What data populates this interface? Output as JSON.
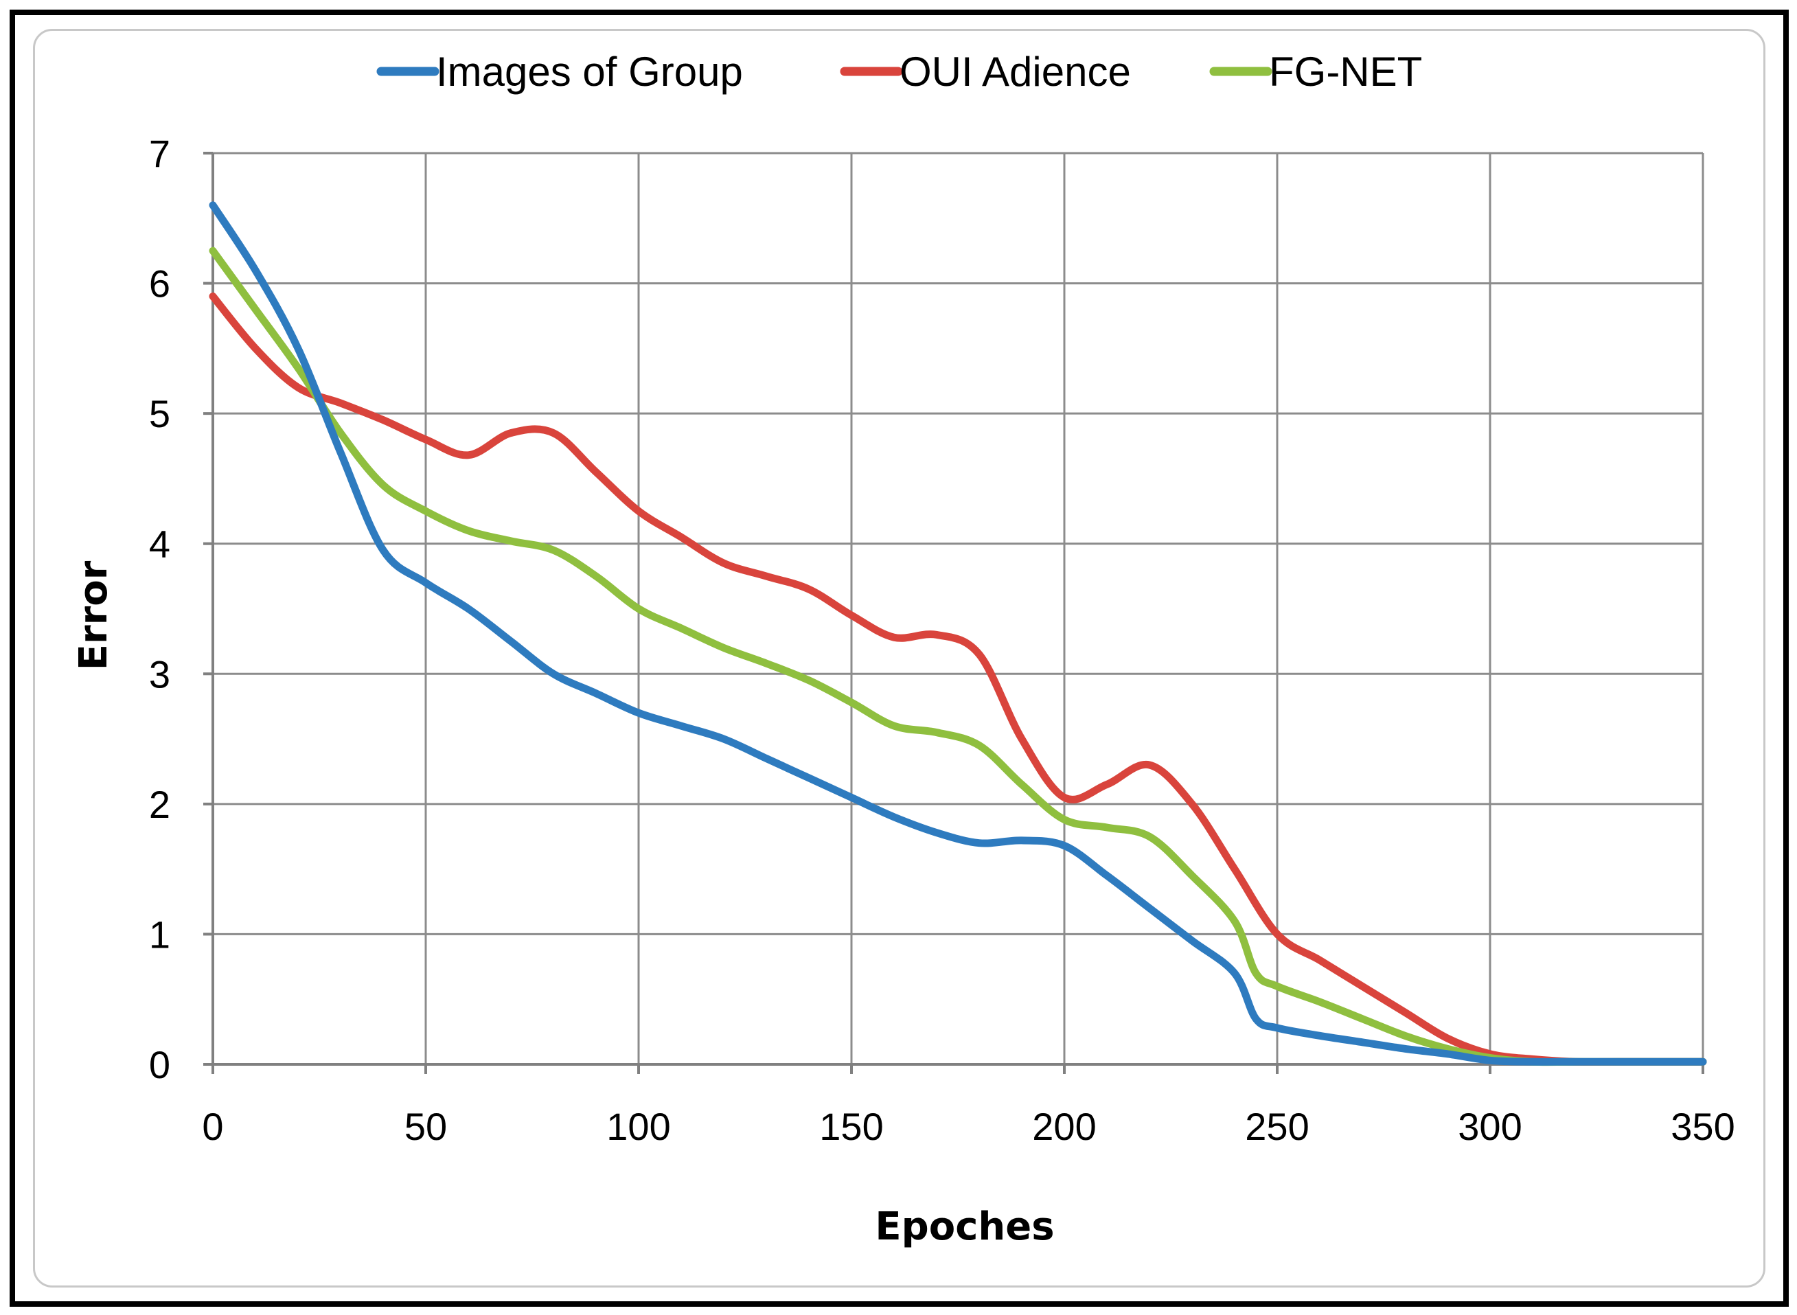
{
  "chart_data": {
    "type": "line",
    "title": "",
    "xlabel": "Epoches",
    "ylabel": "Error",
    "xlim": [
      0,
      350
    ],
    "ylim": [
      0,
      7
    ],
    "x_ticks": [
      0,
      50,
      100,
      150,
      200,
      250,
      300,
      350
    ],
    "y_ticks": [
      0,
      1,
      2,
      3,
      4,
      5,
      6,
      7
    ],
    "grid": true,
    "legend_position": "top-center",
    "series": [
      {
        "name": "Images of Group",
        "color": "#2e7bbf",
        "x": [
          0,
          10,
          20,
          30,
          40,
          50,
          60,
          70,
          80,
          90,
          100,
          110,
          120,
          130,
          140,
          150,
          160,
          170,
          180,
          190,
          200,
          210,
          220,
          230,
          240,
          245,
          250,
          260,
          270,
          280,
          290,
          300,
          310,
          320,
          330,
          340,
          350
        ],
        "y": [
          6.6,
          6.1,
          5.5,
          4.7,
          3.95,
          3.7,
          3.5,
          3.25,
          3.0,
          2.85,
          2.7,
          2.6,
          2.5,
          2.35,
          2.2,
          2.05,
          1.9,
          1.78,
          1.7,
          1.72,
          1.68,
          1.45,
          1.2,
          0.95,
          0.7,
          0.35,
          0.28,
          0.22,
          0.17,
          0.12,
          0.08,
          0.03,
          0.02,
          0.02,
          0.02,
          0.02,
          0.02
        ]
      },
      {
        "name": "OUI Adience",
        "color": "#d9443c",
        "x": [
          0,
          10,
          20,
          30,
          40,
          50,
          60,
          70,
          80,
          90,
          100,
          110,
          120,
          130,
          140,
          150,
          160,
          170,
          180,
          190,
          200,
          210,
          220,
          230,
          240,
          250,
          260,
          270,
          280,
          290,
          300,
          310,
          320,
          330,
          340,
          350
        ],
        "y": [
          5.9,
          5.5,
          5.2,
          5.08,
          4.95,
          4.8,
          4.68,
          4.85,
          4.85,
          4.55,
          4.25,
          4.05,
          3.85,
          3.75,
          3.65,
          3.45,
          3.28,
          3.3,
          3.15,
          2.5,
          2.05,
          2.15,
          2.3,
          2.0,
          1.5,
          1.0,
          0.8,
          0.6,
          0.4,
          0.2,
          0.08,
          0.04,
          0.02,
          0.02,
          0.02,
          0.02
        ]
      },
      {
        "name": "FG-NET",
        "color": "#8fbf3f",
        "x": [
          0,
          10,
          20,
          30,
          40,
          50,
          60,
          70,
          80,
          90,
          100,
          110,
          120,
          130,
          140,
          150,
          160,
          170,
          180,
          190,
          200,
          210,
          220,
          230,
          240,
          245,
          250,
          260,
          270,
          280,
          290,
          300,
          310,
          320,
          330,
          340,
          350
        ],
        "y": [
          6.25,
          5.8,
          5.35,
          4.85,
          4.45,
          4.25,
          4.1,
          4.02,
          3.95,
          3.75,
          3.5,
          3.35,
          3.2,
          3.08,
          2.95,
          2.78,
          2.6,
          2.55,
          2.45,
          2.15,
          1.88,
          1.82,
          1.75,
          1.45,
          1.1,
          0.7,
          0.6,
          0.48,
          0.35,
          0.22,
          0.12,
          0.05,
          0.02,
          0.02,
          0.02,
          0.02,
          0.02
        ]
      }
    ]
  }
}
